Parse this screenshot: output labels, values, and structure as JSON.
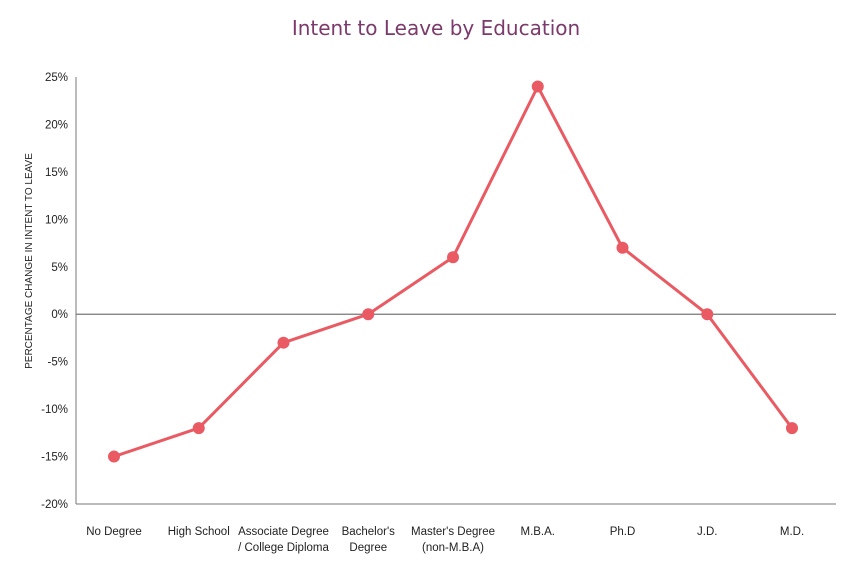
{
  "chart_data": {
    "type": "line",
    "title": "Intent to Leave by Education",
    "ylabel": "PERCENTAGE CHANGE IN INTENT TO LEAVE",
    "xlabel": "",
    "categories": [
      [
        "No Degree"
      ],
      [
        "High School"
      ],
      [
        "Associate Degree",
        "/ College Diploma"
      ],
      [
        "Bachelor's",
        "Degree"
      ],
      [
        "Master's Degree",
        "(non-M.B.A)"
      ],
      [
        "M.B.A."
      ],
      [
        "Ph.D"
      ],
      [
        "J.D."
      ],
      [
        "M.D."
      ]
    ],
    "values": [
      -15,
      -12,
      -3,
      0,
      6,
      24,
      7,
      0,
      -12
    ],
    "ylim": [
      -20,
      25
    ],
    "yticks": [
      25,
      20,
      15,
      10,
      5,
      0,
      -5,
      -10,
      -15,
      -20
    ],
    "ytick_labels": [
      "25%",
      "20%",
      "15%",
      "10%",
      "5%",
      "0%",
      "-5%",
      "-10%",
      "-15%",
      "-20%"
    ],
    "grid": false,
    "zero_line": true,
    "colors": {
      "line": "#ea5a62",
      "title": "#7b3a6b",
      "axis": "#777777"
    }
  }
}
